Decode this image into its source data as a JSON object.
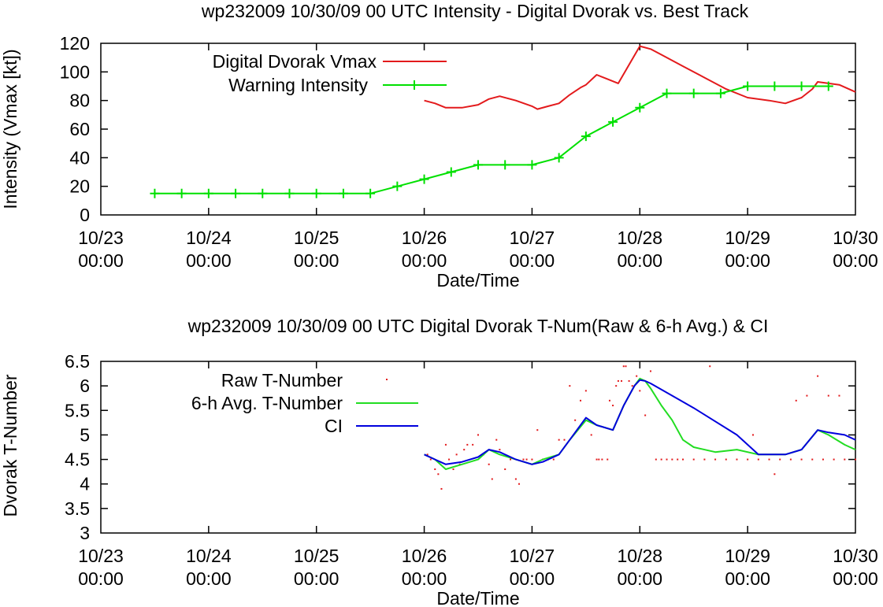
{
  "colors": {
    "vmax": "#e31a1c",
    "warning": "#00e000",
    "raw": "#e31a1c",
    "avg": "#22dd22",
    "ci": "#0000dd",
    "axis": "#000000"
  },
  "chart_data": [
    {
      "type": "line",
      "title": "wp232009 10/30/09  00 UTC Intensity - Digital Dvorak vs. Best Track",
      "xlabel": "Date/Time",
      "ylabel": "Intensity (Vmax [kt])",
      "xlim": [
        0,
        7
      ],
      "ylim": [
        0,
        120
      ],
      "yticks": [
        "0",
        "20",
        "40",
        "60",
        "80",
        "100",
        "120"
      ],
      "xticks": [
        {
          "date": "10/23",
          "time": "00:00"
        },
        {
          "date": "10/24",
          "time": "00:00"
        },
        {
          "date": "10/25",
          "time": "00:00"
        },
        {
          "date": "10/26",
          "time": "00:00"
        },
        {
          "date": "10/27",
          "time": "00:00"
        },
        {
          "date": "10/28",
          "time": "00:00"
        },
        {
          "date": "10/29",
          "time": "00:00"
        },
        {
          "date": "10/30",
          "time": "00:00"
        }
      ],
      "legend": "top-left",
      "series": [
        {
          "name": "Digital Dvorak Vmax",
          "style": "line",
          "x": [
            3.0,
            3.1,
            3.2,
            3.35,
            3.5,
            3.6,
            3.7,
            3.85,
            4.0,
            4.05,
            4.15,
            4.25,
            4.35,
            4.45,
            4.5,
            4.6,
            4.7,
            4.8,
            5.0,
            5.1,
            5.2,
            5.4,
            5.6,
            5.8,
            6.0,
            6.2,
            6.35,
            6.5,
            6.6,
            6.65,
            6.75,
            6.85,
            7.0
          ],
          "values": [
            80,
            78,
            75,
            75,
            77,
            81,
            83,
            80,
            76,
            74,
            76,
            78,
            84,
            89,
            91,
            98,
            95,
            92,
            118,
            116,
            112,
            104,
            96,
            88,
            82,
            80,
            78,
            82,
            88,
            93,
            92,
            91,
            86
          ]
        },
        {
          "name": "Warning Intensity",
          "style": "linespoints",
          "x": [
            0.5,
            0.75,
            1.0,
            1.25,
            1.5,
            1.75,
            2.0,
            2.25,
            2.5,
            2.75,
            3.0,
            3.25,
            3.5,
            3.75,
            4.0,
            4.25,
            4.5,
            4.75,
            5.0,
            5.25,
            5.5,
            5.75,
            6.0,
            6.25,
            6.5,
            6.75
          ],
          "values": [
            15,
            15,
            15,
            15,
            15,
            15,
            15,
            15,
            15,
            20,
            25,
            30,
            35,
            35,
            35,
            40,
            55,
            65,
            75,
            85,
            85,
            85,
            90,
            90,
            90,
            90
          ]
        }
      ]
    },
    {
      "type": "line",
      "title": "wp232009 10/30/09  00 UTC Digital Dvorak T-Num(Raw & 6-h Avg.) & CI",
      "xlabel": "Date/Time",
      "ylabel": "Dvorak T-Number",
      "xlim": [
        0,
        7
      ],
      "ylim": [
        3,
        6.5
      ],
      "yticks": [
        "3",
        "3.5",
        "4",
        "4.5",
        "5",
        "5.5",
        "6",
        "6.5"
      ],
      "xticks": [
        {
          "date": "10/23",
          "time": "00:00"
        },
        {
          "date": "10/24",
          "time": "00:00"
        },
        {
          "date": "10/25",
          "time": "00:00"
        },
        {
          "date": "10/26",
          "time": "00:00"
        },
        {
          "date": "10/27",
          "time": "00:00"
        },
        {
          "date": "10/28",
          "time": "00:00"
        },
        {
          "date": "10/29",
          "time": "00:00"
        },
        {
          "date": "10/30",
          "time": "00:00"
        }
      ],
      "legend": "top-left",
      "series": [
        {
          "name": "Raw T-Number",
          "style": "dots",
          "x": [
            3.03,
            3.06,
            3.1,
            3.13,
            3.16,
            3.2,
            3.23,
            3.27,
            3.3,
            3.33,
            3.37,
            3.4,
            3.45,
            3.5,
            3.55,
            3.6,
            3.63,
            3.67,
            3.7,
            3.75,
            3.8,
            3.85,
            3.88,
            3.92,
            3.95,
            4.0,
            4.05,
            4.1,
            4.15,
            4.2,
            4.25,
            4.3,
            4.35,
            4.4,
            4.45,
            4.5,
            4.55,
            4.6,
            4.62,
            4.65,
            4.7,
            4.72,
            4.75,
            4.78,
            4.8,
            4.83,
            4.85,
            4.87,
            4.9,
            4.93,
            4.97,
            5.0,
            5.05,
            5.1,
            5.15,
            5.2,
            5.25,
            5.3,
            5.35,
            5.4,
            5.5,
            5.6,
            5.7,
            5.8,
            5.9,
            6.0,
            6.1,
            6.2,
            6.3,
            6.4,
            6.5,
            6.6,
            6.7,
            6.8,
            6.9,
            7.0,
            6.45,
            6.55,
            6.65,
            6.75,
            6.85,
            6.25,
            6.05,
            5.65
          ],
          "values": [
            4.6,
            4.5,
            4.3,
            4.2,
            3.9,
            4.8,
            4.5,
            4.3,
            4.6,
            4.4,
            4.7,
            4.8,
            4.8,
            5.0,
            4.6,
            4.4,
            4.1,
            4.9,
            4.7,
            4.3,
            4.5,
            4.1,
            4.0,
            4.5,
            4.5,
            4.5,
            5.1,
            4.5,
            4.5,
            4.5,
            4.9,
            4.9,
            6.0,
            5.3,
            5.7,
            5.9,
            5.0,
            4.5,
            4.5,
            4.5,
            4.5,
            5.7,
            5.6,
            6.0,
            6.1,
            6.1,
            6.4,
            6.4,
            6.1,
            6.0,
            6.2,
            5.9,
            5.4,
            6.3,
            4.5,
            4.5,
            4.5,
            4.5,
            4.5,
            4.5,
            4.5,
            4.5,
            4.5,
            4.5,
            4.5,
            4.5,
            4.5,
            4.5,
            4.5,
            4.5,
            4.5,
            4.5,
            4.5,
            4.5,
            4.5,
            4.5,
            5.7,
            5.8,
            6.2,
            5.8,
            5.8,
            4.2,
            5.0,
            6.4
          ]
        },
        {
          "name": "6-h Avg. T-Number",
          "style": "line",
          "x": [
            3.0,
            3.1,
            3.2,
            3.35,
            3.5,
            3.6,
            3.7,
            3.85,
            4.0,
            4.1,
            4.25,
            4.35,
            4.5,
            4.6,
            4.75,
            4.85,
            4.95,
            5.0,
            5.05,
            5.1,
            5.2,
            5.3,
            5.4,
            5.5,
            5.7,
            5.9,
            6.1,
            6.2,
            6.35,
            6.5,
            6.65,
            6.75,
            6.9,
            7.0
          ],
          "values": [
            4.6,
            4.5,
            4.3,
            4.4,
            4.5,
            4.7,
            4.6,
            4.5,
            4.4,
            4.5,
            4.6,
            4.9,
            5.3,
            5.2,
            5.1,
            5.6,
            6.0,
            6.15,
            6.1,
            5.95,
            5.6,
            5.3,
            4.9,
            4.75,
            4.65,
            4.7,
            4.6,
            4.6,
            4.6,
            4.7,
            5.1,
            5.0,
            4.8,
            4.7
          ]
        },
        {
          "name": "CI",
          "style": "line",
          "x": [
            3.0,
            3.1,
            3.2,
            3.35,
            3.5,
            3.6,
            3.7,
            3.85,
            4.0,
            4.1,
            4.25,
            4.35,
            4.5,
            4.6,
            4.75,
            4.85,
            4.95,
            5.0,
            5.05,
            5.1,
            5.5,
            5.9,
            6.1,
            6.2,
            6.35,
            6.5,
            6.65,
            6.75,
            6.9,
            7.0
          ],
          "values": [
            4.6,
            4.5,
            4.4,
            4.45,
            4.55,
            4.7,
            4.65,
            4.5,
            4.4,
            4.45,
            4.6,
            4.9,
            5.35,
            5.2,
            5.1,
            5.6,
            6.0,
            6.12,
            6.1,
            6.05,
            5.55,
            5.0,
            4.6,
            4.6,
            4.6,
            4.7,
            5.1,
            5.05,
            5.0,
            4.9
          ]
        }
      ]
    }
  ]
}
